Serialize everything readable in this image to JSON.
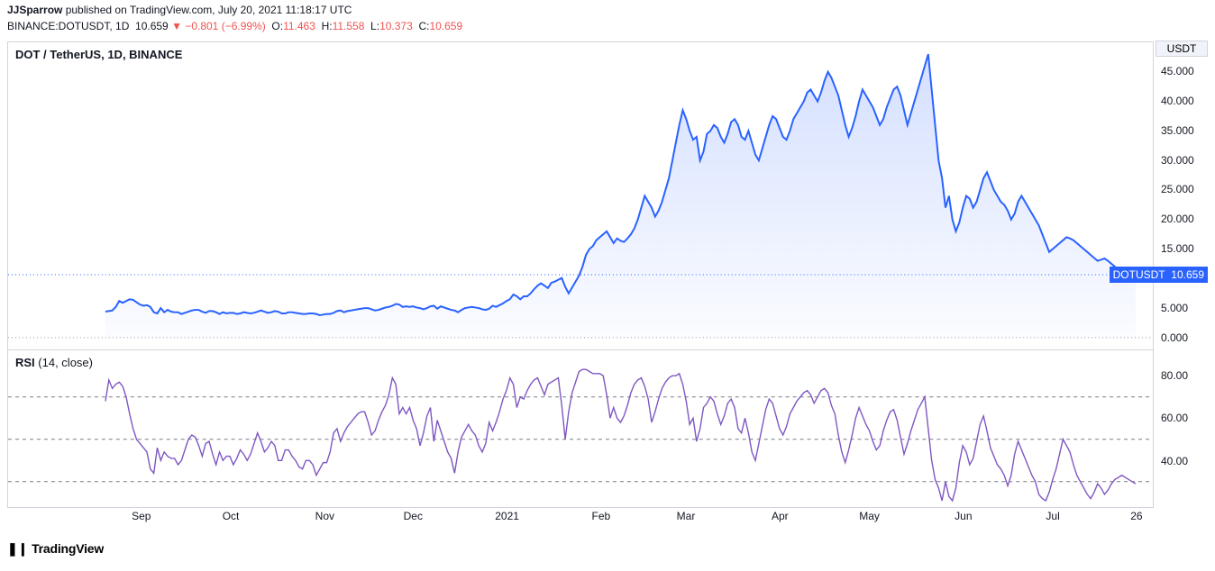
{
  "header": {
    "author": "JJSparrow",
    "published_text": " published on TradingView.com, ",
    "timestamp": "July 20, 2021 11:18:17 UTC"
  },
  "ohlc": {
    "symbol": "BINANCE:DOTUSDT",
    "interval": "1D",
    "last": "10.659",
    "arrow": "▼",
    "change": "−0.801",
    "change_pct": "(−6.99%)",
    "o_label": "O:",
    "o": "11.463",
    "h_label": "H:",
    "h": "11.558",
    "l_label": "L:",
    "l": "10.373",
    "c_label": "C:",
    "c": "10.659"
  },
  "price_pane": {
    "title": "DOT / TetherUS, 1D, BINANCE",
    "unit": "USDT",
    "type": "area",
    "line_color": "#2962ff",
    "fill_top": "rgba(41,98,255,0.20)",
    "fill_bottom": "rgba(41,98,255,0.02)",
    "background_color": "#ffffff",
    "ylim": [
      -2,
      50
    ],
    "yticks": [
      0.0,
      5.0,
      10.0,
      15.0,
      20.0,
      25.0,
      30.0,
      35.0,
      40.0,
      45.0
    ],
    "last_price": 10.659,
    "last_label": "DOTUSDT",
    "last_value_text": "10.659",
    "series": [
      4.4,
      4.5,
      4.6,
      5.2,
      6.2,
      5.9,
      6.2,
      6.5,
      6.4,
      6.0,
      5.6,
      5.4,
      5.5,
      5.2,
      4.3,
      4.1,
      5.0,
      4.3,
      4.7,
      4.4,
      4.3,
      4.3,
      4.0,
      4.2,
      4.4,
      4.6,
      4.7,
      4.7,
      4.4,
      4.2,
      4.5,
      4.5,
      4.3,
      4.0,
      4.3,
      4.1,
      4.2,
      4.2,
      4.0,
      4.1,
      4.3,
      4.2,
      4.1,
      4.2,
      4.4,
      4.6,
      4.4,
      4.2,
      4.3,
      4.5,
      4.4,
      4.1,
      4.1,
      4.3,
      4.3,
      4.2,
      4.1,
      4.0,
      4.0,
      4.1,
      4.1,
      4.0,
      3.8,
      3.9,
      4.0,
      4.0,
      4.2,
      4.5,
      4.6,
      4.3,
      4.5,
      4.6,
      4.7,
      4.8,
      4.9,
      5.0,
      5.0,
      4.8,
      4.6,
      4.7,
      4.9,
      5.1,
      5.2,
      5.4,
      5.7,
      5.6,
      5.2,
      5.3,
      5.2,
      5.3,
      5.1,
      5.0,
      4.8,
      5.0,
      5.3,
      5.4,
      4.9,
      5.3,
      5.1,
      4.9,
      4.7,
      4.6,
      4.3,
      4.7,
      5.0,
      5.1,
      5.2,
      5.1,
      5.0,
      4.8,
      4.7,
      4.9,
      5.4,
      5.2,
      5.5,
      5.8,
      6.2,
      6.5,
      7.3,
      7.0,
      6.5,
      7.0,
      7.0,
      7.5,
      8.2,
      8.8,
      9.2,
      8.8,
      8.4,
      9.3,
      9.5,
      9.8,
      10.1,
      8.6,
      7.5,
      8.5,
      9.5,
      10.5,
      12.0,
      14.0,
      15.0,
      15.5,
      16.5,
      17.0,
      17.5,
      18.0,
      17.0,
      16.0,
      16.8,
      16.4,
      16.2,
      16.8,
      17.5,
      18.5,
      20.0,
      22.0,
      24.0,
      23.0,
      22.0,
      20.5,
      21.5,
      23.0,
      25.0,
      27.0,
      30.0,
      33.0,
      36.0,
      38.5,
      37.0,
      35.0,
      33.5,
      34.0,
      30.0,
      31.5,
      34.5,
      35.0,
      36.0,
      35.5,
      34.0,
      33.0,
      34.5,
      36.5,
      37.0,
      36.0,
      34.0,
      33.5,
      35.0,
      33.0,
      31.0,
      30.0,
      32.0,
      34.0,
      36.0,
      37.5,
      37.0,
      35.5,
      34.0,
      33.5,
      35.0,
      37.0,
      38.0,
      39.0,
      40.0,
      41.5,
      42.0,
      41.0,
      40.0,
      41.5,
      43.5,
      45.0,
      44.0,
      42.5,
      41.0,
      38.5,
      36.0,
      34.0,
      35.5,
      37.5,
      40.0,
      42.0,
      41.0,
      40.0,
      39.0,
      37.5,
      36.0,
      37.0,
      39.0,
      40.5,
      42.0,
      42.5,
      41.0,
      38.5,
      36.0,
      38.0,
      40.0,
      42.0,
      44.0,
      46.0,
      48.0,
      42.0,
      36.0,
      30.0,
      27.0,
      22.0,
      24.0,
      20.0,
      18.0,
      19.5,
      22.0,
      24.0,
      23.5,
      22.0,
      23.0,
      25.0,
      27.0,
      28.0,
      26.5,
      25.0,
      24.0,
      23.0,
      22.5,
      21.5,
      20.0,
      21.0,
      23.0,
      24.0,
      23.0,
      22.0,
      21.0,
      20.0,
      19.0,
      17.5,
      16.0,
      14.5,
      15.0,
      15.5,
      16.0,
      16.5,
      17.0,
      16.8,
      16.5,
      16.0,
      15.5,
      15.0,
      14.5,
      14.0,
      13.5,
      13.0,
      13.2,
      13.4,
      13.0,
      12.5,
      12.0,
      11.5,
      11.2,
      11.0,
      10.8,
      10.7,
      10.659
    ]
  },
  "rsi_pane": {
    "title": "RSI",
    "params": "(14, close)",
    "type": "line",
    "line_color": "#7e57c2",
    "ylim": [
      18,
      92
    ],
    "yticks": [
      40.0,
      60.0,
      80.0
    ],
    "bands": [
      30,
      50,
      70
    ],
    "series": [
      68,
      78,
      74,
      76,
      77,
      75,
      70,
      62,
      55,
      50,
      48,
      46,
      44,
      36,
      34,
      46,
      40,
      44,
      42,
      41,
      41,
      38,
      40,
      45,
      50,
      52,
      51,
      47,
      42,
      48,
      49,
      43,
      38,
      44,
      40,
      42,
      42,
      38,
      41,
      45,
      43,
      40,
      43,
      48,
      53,
      49,
      44,
      46,
      49,
      47,
      40,
      40,
      45,
      45,
      42,
      40,
      37,
      36,
      40,
      40,
      38,
      33,
      36,
      39,
      39,
      44,
      53,
      55,
      49,
      53,
      56,
      58,
      60,
      62,
      63,
      63,
      58,
      52,
      54,
      59,
      63,
      66,
      71,
      79,
      76,
      62,
      65,
      62,
      65,
      59,
      55,
      47,
      53,
      61,
      65,
      49,
      59,
      54,
      49,
      44,
      41,
      34,
      44,
      51,
      54,
      57,
      54,
      52,
      47,
      44,
      48,
      58,
      54,
      58,
      63,
      69,
      73,
      79,
      76,
      65,
      70,
      69,
      73,
      76,
      78,
      79,
      75,
      71,
      76,
      77,
      78,
      79,
      66,
      50,
      63,
      72,
      77,
      82,
      83,
      83,
      82,
      81,
      81,
      81,
      80,
      71,
      60,
      65,
      60,
      58,
      61,
      66,
      72,
      76,
      78,
      79,
      75,
      69,
      58,
      63,
      69,
      74,
      77,
      79,
      80,
      80,
      81,
      76,
      68,
      57,
      60,
      49,
      55,
      65,
      67,
      70,
      68,
      62,
      57,
      61,
      67,
      69,
      65,
      55,
      53,
      60,
      53,
      44,
      40,
      48,
      56,
      64,
      69,
      67,
      61,
      55,
      52,
      56,
      62,
      65,
      68,
      70,
      72,
      73,
      71,
      67,
      70,
      73,
      74,
      72,
      66,
      62,
      52,
      44,
      39,
      45,
      52,
      60,
      65,
      61,
      57,
      54,
      49,
      45,
      47,
      54,
      59,
      63,
      64,
      59,
      51,
      43,
      48,
      54,
      59,
      64,
      67,
      70,
      55,
      40,
      31,
      27,
      21,
      30,
      23,
      21,
      27,
      39,
      47,
      44,
      38,
      41,
      49,
      57,
      61,
      54,
      46,
      42,
      38,
      36,
      33,
      28,
      33,
      43,
      49,
      45,
      41,
      37,
      33,
      30,
      24,
      22,
      21,
      25,
      31,
      36,
      43,
      50,
      47,
      44,
      38,
      33,
      30,
      27,
      24,
      22,
      25,
      29,
      27,
      24,
      26,
      29,
      31,
      32,
      33,
      32,
      31,
      30,
      29
    ]
  },
  "x_axis": {
    "labels": [
      "Sep",
      "Oct",
      "Nov",
      "Dec",
      "2021",
      "Feb",
      "Mar",
      "Apr",
      "May",
      "Jun",
      "Jul",
      "26"
    ],
    "positions_pct": [
      11.7,
      19.5,
      27.7,
      35.4,
      43.6,
      51.8,
      59.2,
      67.4,
      75.2,
      83.4,
      91.2,
      98.5
    ]
  },
  "logo": {
    "text": "TradingView"
  }
}
